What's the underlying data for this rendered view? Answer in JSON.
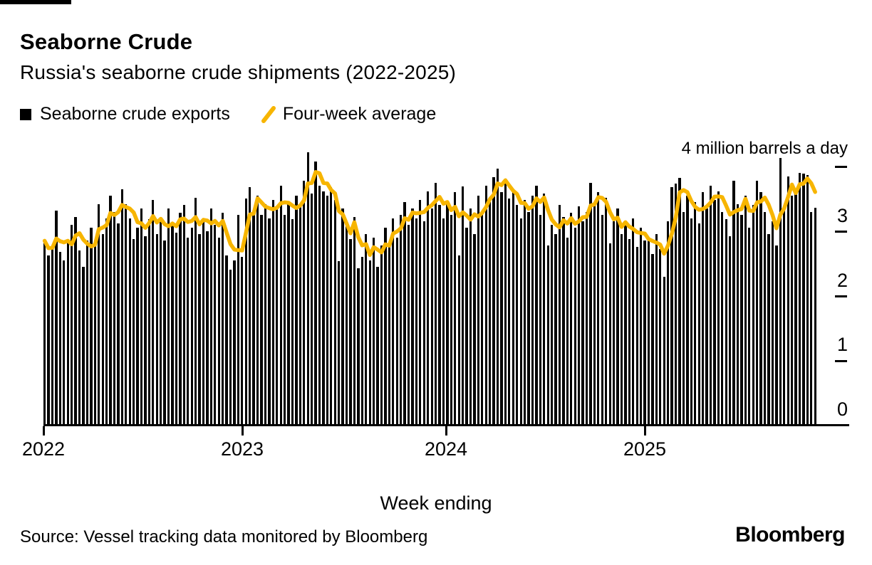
{
  "header": {
    "title": "Seaborne Crude",
    "subtitle": "Russia's seaborne crude shipments (2022-2025)"
  },
  "legend": [
    {
      "label": "Seaborne crude exports",
      "swatch": "square",
      "color": "#000000"
    },
    {
      "label": "Four-week average",
      "swatch": "line",
      "color": "#F7B500"
    }
  ],
  "chart_data": {
    "type": "bar",
    "title": "Seaborne Crude",
    "subtitle": "Russia's seaborne crude shipments (2022-2025)",
    "unit_annotation": "4 million barrels a day",
    "xlabel": "Week ending",
    "x_unit": "week",
    "x_tick_labels": [
      "2022",
      "2023",
      "2024",
      "2025"
    ],
    "y_ticks": [
      0,
      1,
      2,
      3,
      4
    ],
    "y_axis_display": [
      "3",
      "2",
      "1",
      "0"
    ],
    "ylim": [
      0,
      4.4
    ],
    "grid": false,
    "legend_position": "top-left",
    "axis_side": "right",
    "series": [
      {
        "name": "Seaborne crude exports",
        "type": "bar",
        "color": "#000000",
        "values": [
          2.85,
          2.62,
          2.75,
          3.32,
          2.68,
          2.55,
          2.85,
          3.1,
          3.22,
          2.7,
          2.45,
          2.85,
          3.05,
          2.8,
          3.42,
          2.95,
          3.2,
          3.55,
          3.3,
          3.12,
          3.65,
          3.42,
          3.2,
          2.88,
          3.05,
          3.35,
          2.92,
          3.18,
          3.48,
          2.95,
          3.15,
          2.85,
          3.35,
          3.12,
          2.98,
          3.28,
          3.4,
          2.9,
          3.05,
          3.52,
          2.95,
          3.18,
          3.0,
          3.35,
          3.1,
          2.9,
          3.28,
          2.62,
          2.4,
          2.55,
          3.25,
          2.6,
          3.5,
          3.68,
          3.3,
          3.55,
          3.25,
          3.42,
          3.2,
          3.48,
          3.35,
          3.7,
          3.25,
          3.45,
          3.18,
          3.55,
          3.4,
          3.78,
          4.22,
          3.58,
          4.08,
          3.7,
          3.62,
          3.55,
          3.68,
          3.48,
          2.53,
          3.35,
          3.1,
          2.88,
          3.22,
          2.42,
          2.6,
          2.95,
          2.55,
          2.9,
          2.45,
          2.78,
          3.05,
          2.82,
          3.2,
          2.9,
          3.25,
          3.45,
          3.1,
          3.35,
          3.2,
          3.48,
          3.15,
          3.62,
          3.35,
          3.75,
          3.4,
          3.2,
          3.45,
          3.25,
          3.6,
          2.62,
          3.69,
          3.05,
          3.35,
          2.95,
          3.55,
          3.28,
          3.7,
          3.45,
          3.83,
          3.97,
          3.6,
          3.75,
          3.5,
          3.65,
          3.4,
          3.2,
          3.48,
          3.3,
          3.55,
          3.7,
          3.25,
          3.58,
          2.78,
          3.1,
          2.95,
          3.4,
          3.22,
          2.9,
          3.28,
          3.05,
          3.38,
          3.15,
          3.3,
          3.75,
          3.45,
          3.6,
          3.25,
          3.52,
          2.81,
          3.15,
          3.35,
          2.95,
          3.1,
          2.88,
          3.2,
          2.75,
          3.05,
          2.85,
          2.85,
          2.64,
          2.95,
          2.72,
          2.29,
          3.15,
          3.68,
          3.74,
          3.82,
          3.3,
          3.55,
          3.2,
          3.45,
          3.12,
          3.6,
          3.35,
          3.7,
          3.48,
          3.62,
          3.3,
          3.18,
          2.92,
          3.78,
          3.42,
          3.25,
          3.55,
          3.05,
          3.4,
          3.78,
          3.6,
          3.3,
          2.95,
          3.15,
          2.78,
          4.13,
          3.35,
          3.85,
          3.55,
          3.6,
          3.9,
          3.89,
          3.87,
          3.3,
          3.36
        ]
      },
      {
        "name": "Four-week average",
        "type": "line",
        "color": "#F7B500",
        "window": 4
      }
    ]
  },
  "footer": {
    "source": "Source: Vessel tracking data monitored by Bloomberg",
    "logo": "Bloomberg"
  }
}
